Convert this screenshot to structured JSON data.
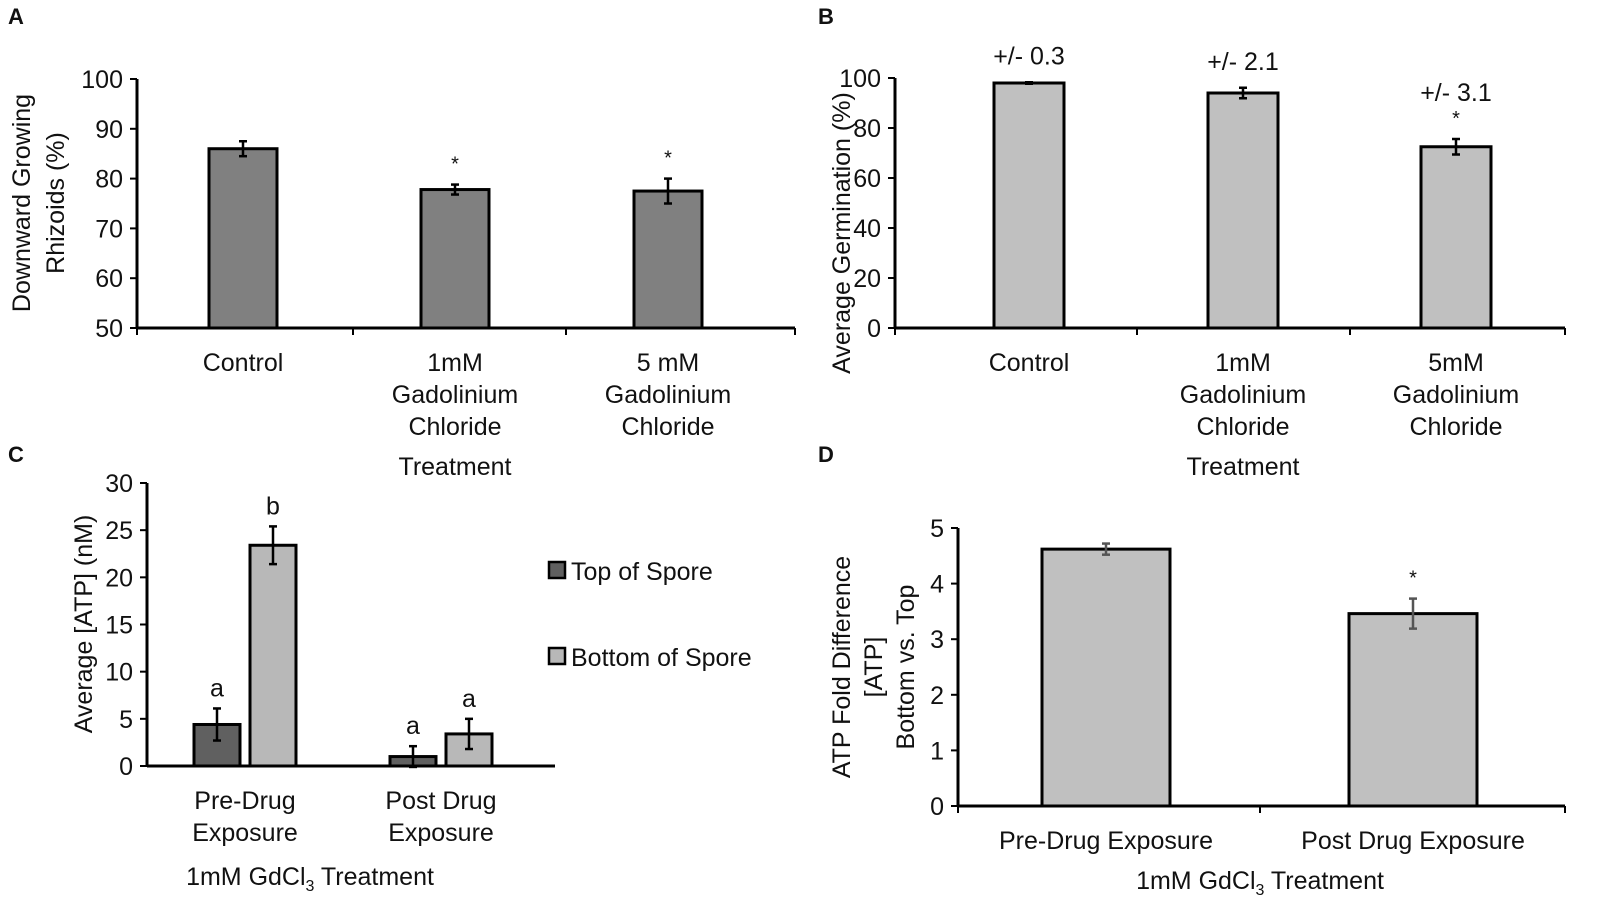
{
  "chart_data": [
    {
      "panel": "A",
      "type": "bar",
      "categories": [
        [
          "Control"
        ],
        [
          "1mM",
          "Gadolinium",
          "Chloride"
        ],
        [
          "5 mM",
          "Gadolinium",
          "Chloride"
        ]
      ],
      "values": [
        86,
        77.8,
        77.5
      ],
      "errors": [
        1.5,
        1.0,
        2.5
      ],
      "annotations": [
        "",
        "*",
        "*"
      ],
      "xlabel": "Treatment",
      "ylabel": [
        "Downward Growing",
        "Rhizoids (%)"
      ],
      "ylim": [
        50,
        100
      ],
      "yticks": [
        50,
        60,
        70,
        80,
        90,
        100
      ],
      "color": "#808080"
    },
    {
      "panel": "B",
      "type": "bar",
      "categories": [
        [
          "Control"
        ],
        [
          "1mM",
          "Gadolinium",
          "Chloride"
        ],
        [
          "5mM",
          "Gadolinium",
          "Chloride"
        ]
      ],
      "values": [
        98,
        94,
        72.5
      ],
      "errors": [
        0.3,
        2.1,
        3.1
      ],
      "annotations": [
        "",
        "",
        "*"
      ],
      "error_labels": [
        "+/- 0.3",
        "+/- 2.1",
        "+/- 3.1"
      ],
      "xlabel": "Treatment",
      "ylabel": [
        "Average Germination (%)"
      ],
      "ylim": [
        0,
        100
      ],
      "yticks": [
        0,
        20,
        40,
        60,
        80,
        100
      ],
      "color": "#c0c0c0"
    },
    {
      "panel": "C",
      "type": "bar",
      "categories": [
        [
          "Pre-Drug",
          "Exposure"
        ],
        [
          "Post Drug",
          "Exposure"
        ]
      ],
      "series": [
        {
          "name": "Top of Spore",
          "values": [
            4.4,
            1.0
          ],
          "errors": [
            1.7,
            1.1
          ],
          "annotations": [
            "a",
            "a"
          ],
          "color": "#606060"
        },
        {
          "name": "Bottom of Spore",
          "values": [
            23.4,
            3.4
          ],
          "errors": [
            2.0,
            1.6
          ],
          "annotations": [
            "b",
            "a"
          ],
          "color": "#b8b8b8"
        }
      ],
      "xlabel": "1mM GdCl",
      "xlabel_sub": "3",
      "xlabel_tail": " Treatment",
      "ylabel": [
        "Average [ATP] (nM)"
      ],
      "ylim": [
        0,
        30
      ],
      "yticks": [
        0,
        5,
        10,
        15,
        20,
        25,
        30
      ],
      "legend": "right"
    },
    {
      "panel": "D",
      "type": "bar",
      "categories": [
        [
          "Pre-Drug Exposure"
        ],
        [
          "Post Drug Exposure"
        ]
      ],
      "values": [
        4.62,
        3.46
      ],
      "errors": [
        0.1,
        0.27
      ],
      "annotations": [
        "",
        "*"
      ],
      "xlabel": "1mM GdCl",
      "xlabel_sub": "3",
      "xlabel_tail": " Treatment",
      "ylabel": [
        "ATP Fold Difference",
        "[ATP]",
        "Bottom vs. Top"
      ],
      "ylim": [
        0,
        5
      ],
      "yticks": [
        0,
        1,
        2,
        3,
        4,
        5
      ],
      "color": "#c0c0c0"
    }
  ]
}
